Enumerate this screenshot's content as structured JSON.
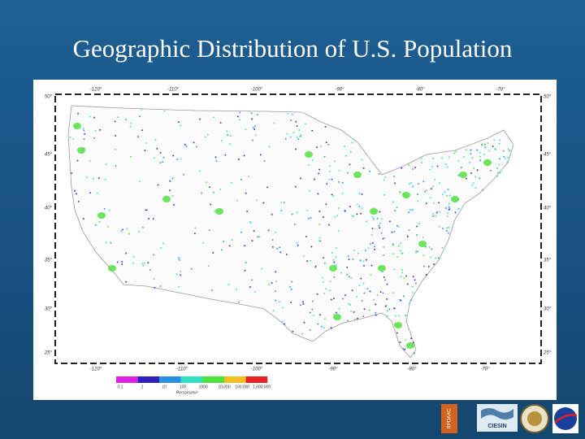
{
  "header": {
    "title": "Geographic Distribution of U.S. Population"
  },
  "map": {
    "lon_labels_top": [
      "-120°",
      "-110°",
      "-100°",
      "-90°",
      "-80°",
      "-70°"
    ],
    "lon_labels_bottom": [
      "-120°",
      "-110°",
      "-100°",
      "-90°",
      "-80°",
      "-70°"
    ],
    "lat_labels_left": [
      "50°",
      "45°",
      "40°",
      "35°",
      "30°",
      "25°"
    ],
    "lat_labels_right": [
      "50°",
      "45°",
      "40°",
      "35°",
      "30°",
      "25°"
    ],
    "legend": {
      "labels": [
        "0.1",
        "1",
        "10",
        "100",
        "1000",
        "10,000",
        "100,000",
        "1,000,000"
      ],
      "unit": "Persons/mi²"
    }
  },
  "logos": [
    "RPDAAC",
    "CIESIN"
  ]
}
